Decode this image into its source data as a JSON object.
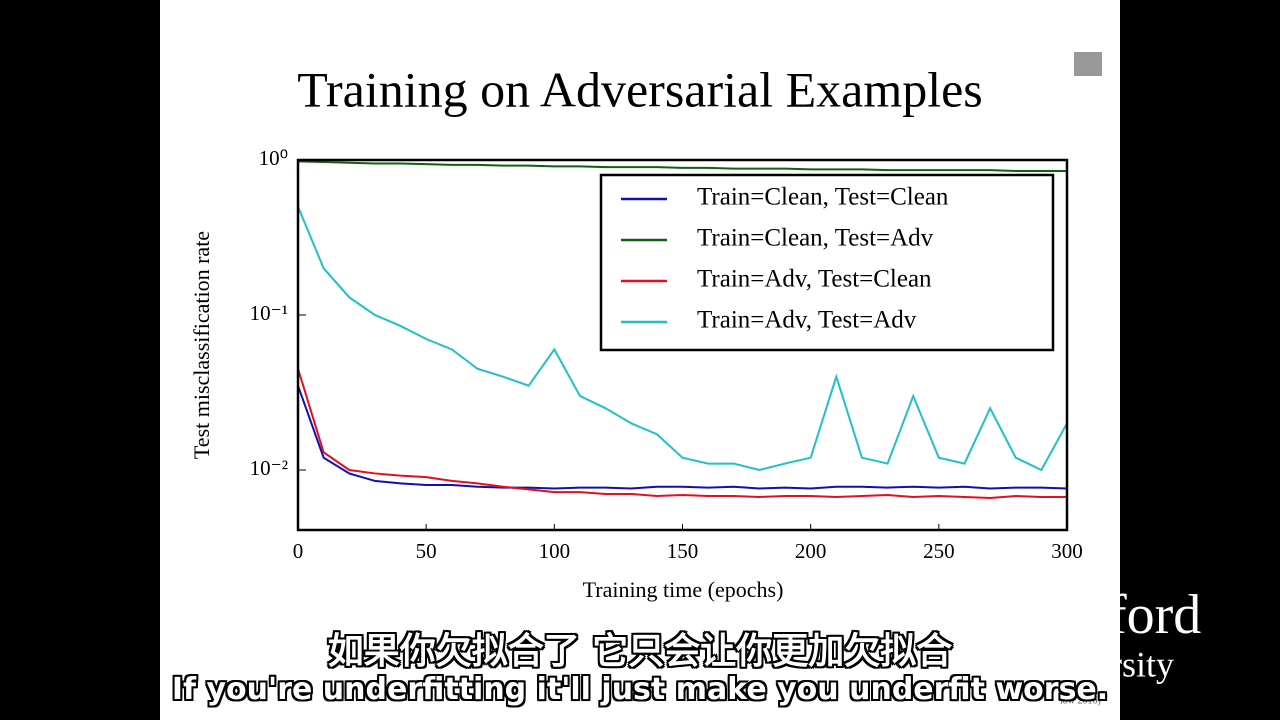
{
  "chart_data": {
    "type": "line",
    "title": "Training on Adversarial Examples",
    "x_label": "Training time (epochs)",
    "y_label": "Test misclassification rate",
    "x": [
      0,
      10,
      20,
      30,
      40,
      50,
      60,
      70,
      80,
      90,
      100,
      110,
      120,
      130,
      140,
      150,
      160,
      170,
      180,
      190,
      200,
      210,
      220,
      230,
      240,
      250,
      260,
      270,
      280,
      290,
      300
    ],
    "series": [
      {
        "name": "Train=Clean, Test=Clean",
        "color": "#1010b0",
        "values": [
          0.035,
          0.012,
          0.0095,
          0.0085,
          0.0082,
          0.008,
          0.008,
          0.0078,
          0.0077,
          0.0077,
          0.0076,
          0.0077,
          0.0077,
          0.0076,
          0.0078,
          0.0078,
          0.0077,
          0.0078,
          0.0076,
          0.0077,
          0.0076,
          0.0078,
          0.0078,
          0.0077,
          0.0078,
          0.0077,
          0.0078,
          0.0076,
          0.0077,
          0.0077,
          0.0076
        ]
      },
      {
        "name": "Train=Clean, Test=Adv",
        "color": "#106010",
        "values": [
          0.98,
          0.97,
          0.96,
          0.95,
          0.95,
          0.94,
          0.93,
          0.93,
          0.92,
          0.92,
          0.91,
          0.91,
          0.9,
          0.9,
          0.9,
          0.89,
          0.89,
          0.88,
          0.88,
          0.88,
          0.87,
          0.87,
          0.87,
          0.86,
          0.86,
          0.86,
          0.86,
          0.86,
          0.85,
          0.85,
          0.85
        ]
      },
      {
        "name": "Train=Adv, Test=Clean",
        "color": "#e01020",
        "values": [
          0.045,
          0.013,
          0.01,
          0.0095,
          0.0092,
          0.009,
          0.0085,
          0.0082,
          0.0078,
          0.0075,
          0.0072,
          0.0072,
          0.007,
          0.007,
          0.0068,
          0.0069,
          0.0068,
          0.0068,
          0.0067,
          0.0068,
          0.0068,
          0.0067,
          0.0068,
          0.0069,
          0.0067,
          0.0068,
          0.0067,
          0.0066,
          0.0068,
          0.0067,
          0.0067
        ]
      },
      {
        "name": "Train=Adv, Test=Adv",
        "color": "#20c0c8",
        "values": [
          0.5,
          0.2,
          0.13,
          0.1,
          0.085,
          0.07,
          0.06,
          0.045,
          0.04,
          0.035,
          0.06,
          0.03,
          0.025,
          0.02,
          0.017,
          0.012,
          0.011,
          0.011,
          0.01,
          0.011,
          0.012,
          0.04,
          0.012,
          0.011,
          0.03,
          0.012,
          0.011,
          0.025,
          0.012,
          0.01,
          0.02
        ]
      }
    ],
    "xlim": [
      0,
      300
    ],
    "xticks": [
      0,
      50,
      100,
      150,
      200,
      250,
      300
    ],
    "ylim": [
      0.0041,
      1
    ],
    "log_y": true,
    "yticks": [
      {
        "value": 1,
        "label": "10⁰"
      },
      {
        "value": 0.1,
        "label": "10⁻¹"
      },
      {
        "value": 0.01,
        "label": "10⁻²"
      }
    ],
    "legend": "upper right"
  },
  "logo": [
    "ford",
    "rsity"
  ],
  "citation": "low 2016)",
  "subtitles": [
    "如果你欠拟合了 它只会让你更加欠拟合",
    "If you're underfitting it'll just make you underfit worse."
  ]
}
